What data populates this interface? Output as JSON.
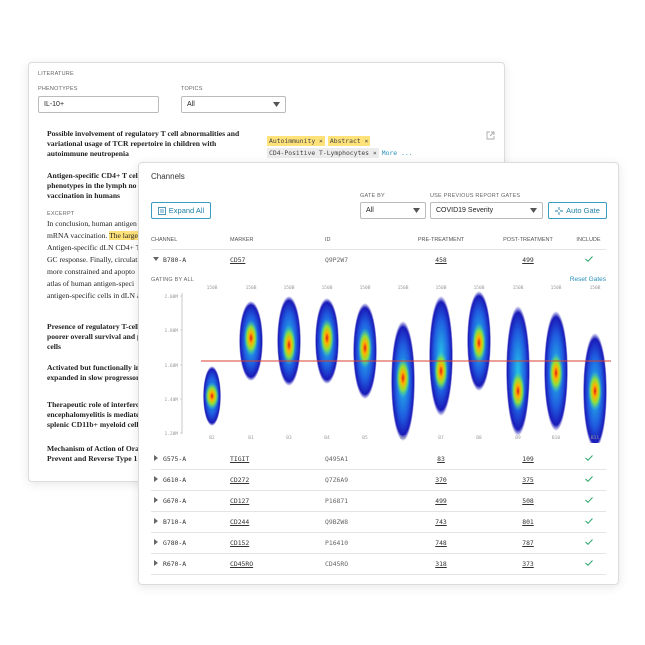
{
  "literature": {
    "heading": "LITERATURE",
    "phenotypes_label": "PHENOTYPES",
    "phenotypes_value": "IL-10+",
    "topics_label": "TOPICS",
    "topics_value": "All",
    "articles": [
      {
        "lines": [
          "Possible involvement of regulatory T cell abnormalities and",
          "variational usage of TCR repertoire in children with",
          "autoimmune neutropenia"
        ]
      },
      {
        "lines": [
          "Antigen-specific CD4+ T cell",
          "phenotypes in the lymph no",
          "vaccination in humans"
        ]
      },
      {
        "lines": [
          "Presence of regulatory T-cell",
          "poorer overall survival and p",
          "cells"
        ]
      },
      {
        "lines": [
          "Activated but functionally in",
          "expanded in slow progressor"
        ]
      },
      {
        "lines": [
          "Therapeutic role of interferon",
          "encephalomyelitis is mediate",
          "splenic CD11b+ myeloid cells"
        ]
      },
      {
        "lines": [
          "Mechanism of Action of Oral",
          "Prevent and Reverse Type 1 D"
        ]
      }
    ],
    "tags": [
      "Autoimmunity ×",
      "Abstract ×",
      "CD4-Positive T-Lymphocytes ×"
    ],
    "more": "More ...",
    "excerpt_label": "EXCERPT",
    "excerpt_lines": [
      "In conclusion, human antigen",
      "mRNA vaccination.",
      "Antigen-specific dLN CD4+ T",
      "GC response. Finally, circulati",
      "more constrained and apopto",
      "atlas of human antigen-speci",
      "antigen-specific cells in dLN a"
    ],
    "excerpt_highlight": "The larges"
  },
  "channels": {
    "title": "Channels",
    "expand_button": "Expand All",
    "gate_by_label": "GATE BY",
    "gate_by_value": "All",
    "previous_label": "USE PREVIOUS REPORT GATES",
    "previous_value": "COVID19 Severity",
    "auto_gate_button": "Auto Gate",
    "columns": [
      "CHANNEL",
      "MARKER",
      "ID",
      "PRE-TREATMENT",
      "POST-TREATMENT",
      "INCLUDE"
    ],
    "rows": [
      [
        "B780-A",
        "CD57",
        "Q9P2W7",
        458,
        499
      ],
      [
        "G575-A",
        "TIGIT",
        "Q495A1",
        83,
        109
      ],
      [
        "G610-A",
        "CD272",
        "Q7Z6A9",
        370,
        375
      ],
      [
        "G670-A",
        "CD127",
        "P16871",
        499,
        508
      ],
      [
        "B710-A",
        "CD244",
        "Q9BZW8",
        743,
        801
      ],
      [
        "G780-A",
        "CD152",
        "P16410",
        748,
        787
      ],
      [
        "R670-A",
        "CD45RO",
        "CD45RO",
        318,
        373
      ]
    ],
    "gating_label": "GATING BY ALL",
    "reset_gates": "Reset Gates",
    "plot": {
      "y_labels": [
        "2.00M",
        "1.80M",
        "1.60M",
        "1.40M",
        "1.20M"
      ],
      "top_labels": [
        "150B",
        "150B",
        "150B",
        "150B",
        "150B",
        "150B",
        "150B",
        "150B",
        "150B",
        "150B",
        "150B"
      ],
      "bottom_labels": [
        "B2",
        "B1",
        "B3",
        "B4",
        "B5",
        "B6",
        "B7",
        "B8",
        "B9",
        "B10",
        "B11"
      ]
    }
  }
}
